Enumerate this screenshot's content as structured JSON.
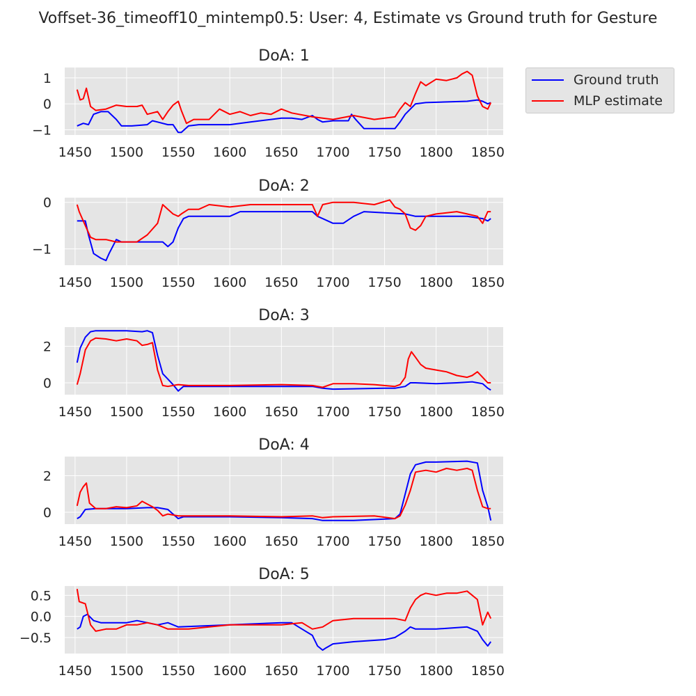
{
  "figure_title": "Voffset-36_timeoff10_mintemp0.5: User: 4, Estimate vs Ground truth for Gesture",
  "legend": {
    "placement": "upper-right-outside",
    "items": [
      {
        "label": "Ground truth",
        "color": "#0000ff"
      },
      {
        "label": "MLP estimate",
        "color": "#ff0000"
      }
    ]
  },
  "colors": {
    "panel_bg": "#e5e5e5",
    "grid": "#ffffff",
    "text": "#262626"
  },
  "chart_data": [
    {
      "type": "line",
      "title": "DoA: 1",
      "xlabel": "",
      "ylabel": "",
      "xlim": [
        1440,
        1865
      ],
      "ylim": [
        -1.2,
        1.4
      ],
      "xticks": [
        1450,
        1500,
        1550,
        1600,
        1650,
        1700,
        1750,
        1800,
        1850
      ],
      "yticks": [
        -1,
        0,
        1
      ],
      "ytick_labels": [
        "−1",
        "0",
        "1"
      ],
      "grid": true,
      "series": [
        {
          "name": "Ground truth",
          "color": "#0000ff",
          "x": [
            1452,
            1458,
            1463,
            1468,
            1475,
            1482,
            1490,
            1495,
            1505,
            1520,
            1525,
            1530,
            1540,
            1545,
            1550,
            1553,
            1560,
            1570,
            1600,
            1620,
            1640,
            1650,
            1660,
            1670,
            1680,
            1685,
            1690,
            1700,
            1715,
            1718,
            1722,
            1730,
            1760,
            1765,
            1770,
            1775,
            1780,
            1790,
            1830,
            1840,
            1845,
            1850,
            1853
          ],
          "y": [
            -0.85,
            -0.75,
            -0.8,
            -0.4,
            -0.3,
            -0.3,
            -0.6,
            -0.85,
            -0.85,
            -0.8,
            -0.65,
            -0.7,
            -0.8,
            -0.8,
            -1.1,
            -1.1,
            -0.85,
            -0.8,
            -0.8,
            -0.7,
            -0.6,
            -0.55,
            -0.55,
            -0.6,
            -0.45,
            -0.6,
            -0.7,
            -0.65,
            -0.65,
            -0.4,
            -0.6,
            -0.95,
            -0.95,
            -0.7,
            -0.4,
            -0.2,
            0,
            0.05,
            0.1,
            0.15,
            0.1,
            0,
            0.05
          ]
        },
        {
          "name": "MLP estimate",
          "color": "#ff0000",
          "x": [
            1452,
            1455,
            1458,
            1461,
            1465,
            1470,
            1480,
            1490,
            1500,
            1510,
            1515,
            1520,
            1530,
            1535,
            1540,
            1545,
            1550,
            1553,
            1558,
            1565,
            1580,
            1590,
            1600,
            1610,
            1620,
            1630,
            1640,
            1650,
            1660,
            1680,
            1700,
            1720,
            1740,
            1750,
            1760,
            1765,
            1770,
            1775,
            1780,
            1785,
            1790,
            1800,
            1810,
            1820,
            1825,
            1830,
            1835,
            1840,
            1845,
            1850,
            1853
          ],
          "y": [
            0.55,
            0.15,
            0.2,
            0.6,
            -0.1,
            -0.25,
            -0.2,
            -0.05,
            -0.1,
            -0.1,
            -0.05,
            -0.4,
            -0.3,
            -0.6,
            -0.3,
            -0.05,
            0.1,
            -0.25,
            -0.75,
            -0.6,
            -0.6,
            -0.2,
            -0.4,
            -0.3,
            -0.45,
            -0.35,
            -0.4,
            -0.2,
            -0.35,
            -0.5,
            -0.6,
            -0.45,
            -0.6,
            -0.55,
            -0.5,
            -0.2,
            0.05,
            -0.1,
            0.4,
            0.85,
            0.7,
            0.95,
            0.9,
            1.0,
            1.15,
            1.25,
            1.1,
            0.3,
            -0.1,
            -0.2,
            0.05
          ]
        }
      ]
    },
    {
      "type": "line",
      "title": "DoA: 2",
      "xlabel": "",
      "ylabel": "",
      "xlim": [
        1440,
        1865
      ],
      "ylim": [
        -1.35,
        0.1
      ],
      "xticks": [
        1450,
        1500,
        1550,
        1600,
        1650,
        1700,
        1750,
        1800,
        1850
      ],
      "yticks": [
        -1,
        0
      ],
      "ytick_labels": [
        "−1",
        "0"
      ],
      "grid": true,
      "series": [
        {
          "name": "Ground truth",
          "color": "#0000ff",
          "x": [
            1452,
            1460,
            1463,
            1468,
            1475,
            1480,
            1483,
            1490,
            1495,
            1505,
            1535,
            1540,
            1545,
            1550,
            1555,
            1560,
            1600,
            1610,
            1680,
            1685,
            1690,
            1700,
            1710,
            1720,
            1730,
            1770,
            1780,
            1830,
            1845,
            1850,
            1853
          ],
          "y": [
            -0.4,
            -0.4,
            -0.7,
            -1.1,
            -1.2,
            -1.25,
            -1.1,
            -0.8,
            -0.85,
            -0.85,
            -0.85,
            -0.95,
            -0.85,
            -0.55,
            -0.35,
            -0.3,
            -0.3,
            -0.2,
            -0.2,
            -0.3,
            -0.35,
            -0.45,
            -0.45,
            -0.3,
            -0.2,
            -0.25,
            -0.3,
            -0.3,
            -0.35,
            -0.4,
            -0.35
          ]
        },
        {
          "name": "MLP estimate",
          "color": "#ff0000",
          "x": [
            1452,
            1454,
            1457,
            1460,
            1465,
            1470,
            1480,
            1490,
            1500,
            1510,
            1520,
            1530,
            1535,
            1540,
            1545,
            1550,
            1553,
            1560,
            1570,
            1580,
            1600,
            1620,
            1660,
            1680,
            1685,
            1690,
            1700,
            1720,
            1740,
            1755,
            1760,
            1765,
            1770,
            1775,
            1780,
            1785,
            1790,
            1800,
            1820,
            1830,
            1840,
            1845,
            1850,
            1853
          ],
          "y": [
            -0.05,
            -0.2,
            -0.35,
            -0.5,
            -0.75,
            -0.8,
            -0.8,
            -0.85,
            -0.85,
            -0.85,
            -0.7,
            -0.45,
            -0.05,
            -0.15,
            -0.25,
            -0.3,
            -0.25,
            -0.15,
            -0.15,
            -0.05,
            -0.1,
            -0.05,
            -0.05,
            -0.05,
            -0.3,
            -0.05,
            0,
            0,
            -0.05,
            0.05,
            -0.1,
            -0.15,
            -0.25,
            -0.55,
            -0.6,
            -0.5,
            -0.3,
            -0.25,
            -0.2,
            -0.25,
            -0.3,
            -0.45,
            -0.2,
            -0.2
          ]
        }
      ]
    },
    {
      "type": "line",
      "title": "DoA: 3",
      "xlabel": "",
      "ylabel": "",
      "xlim": [
        1440,
        1865
      ],
      "ylim": [
        -0.65,
        3.05
      ],
      "xticks": [
        1450,
        1500,
        1550,
        1600,
        1650,
        1700,
        1750,
        1800,
        1850
      ],
      "yticks": [
        0,
        2
      ],
      "ytick_labels": [
        "0",
        "2"
      ],
      "grid": true,
      "series": [
        {
          "name": "Ground truth",
          "color": "#0000ff",
          "x": [
            1452,
            1455,
            1460,
            1465,
            1470,
            1480,
            1500,
            1515,
            1520,
            1525,
            1530,
            1535,
            1540,
            1545,
            1550,
            1555,
            1560,
            1600,
            1650,
            1680,
            1690,
            1700,
            1750,
            1760,
            1770,
            1775,
            1780,
            1800,
            1820,
            1835,
            1845,
            1850,
            1853
          ],
          "y": [
            1.1,
            1.9,
            2.5,
            2.8,
            2.85,
            2.85,
            2.85,
            2.8,
            2.85,
            2.75,
            1.5,
            0.5,
            0.2,
            -0.1,
            -0.45,
            -0.2,
            -0.2,
            -0.2,
            -0.2,
            -0.2,
            -0.3,
            -0.35,
            -0.3,
            -0.3,
            -0.2,
            0,
            0,
            -0.05,
            0,
            0.05,
            -0.05,
            -0.3,
            -0.4
          ]
        },
        {
          "name": "MLP estimate",
          "color": "#ff0000",
          "x": [
            1452,
            1455,
            1460,
            1465,
            1470,
            1480,
            1490,
            1500,
            1510,
            1515,
            1520,
            1525,
            1530,
            1535,
            1540,
            1550,
            1560,
            1600,
            1650,
            1680,
            1690,
            1700,
            1720,
            1740,
            1760,
            1765,
            1770,
            1773,
            1776,
            1780,
            1785,
            1790,
            1800,
            1810,
            1820,
            1830,
            1835,
            1840,
            1845,
            1850,
            1853
          ],
          "y": [
            -0.1,
            0.5,
            1.8,
            2.3,
            2.45,
            2.4,
            2.3,
            2.4,
            2.3,
            2.05,
            2.1,
            2.2,
            0.7,
            -0.15,
            -0.2,
            -0.1,
            -0.15,
            -0.15,
            -0.1,
            -0.15,
            -0.25,
            -0.05,
            -0.05,
            -0.1,
            -0.2,
            -0.1,
            0.3,
            1.3,
            1.7,
            1.4,
            1.0,
            0.8,
            0.7,
            0.6,
            0.4,
            0.3,
            0.4,
            0.6,
            0.3,
            0,
            0
          ]
        }
      ]
    },
    {
      "type": "line",
      "title": "DoA: 4",
      "xlabel": "",
      "ylabel": "",
      "xlim": [
        1440,
        1865
      ],
      "ylim": [
        -0.65,
        3.05
      ],
      "xticks": [
        1450,
        1500,
        1550,
        1600,
        1650,
        1700,
        1750,
        1800,
        1850
      ],
      "yticks": [
        0,
        2
      ],
      "ytick_labels": [
        "0",
        "2"
      ],
      "grid": true,
      "series": [
        {
          "name": "Ground truth",
          "color": "#0000ff",
          "x": [
            1452,
            1455,
            1460,
            1470,
            1500,
            1520,
            1525,
            1530,
            1540,
            1545,
            1550,
            1555,
            1600,
            1650,
            1680,
            1690,
            1700,
            1720,
            1760,
            1765,
            1770,
            1775,
            1780,
            1790,
            1800,
            1830,
            1840,
            1845,
            1850,
            1853
          ],
          "y": [
            -0.35,
            -0.25,
            0.15,
            0.2,
            0.2,
            0.25,
            0.25,
            0.25,
            0.15,
            -0.1,
            -0.35,
            -0.25,
            -0.25,
            -0.3,
            -0.35,
            -0.45,
            -0.45,
            -0.45,
            -0.35,
            -0.1,
            1.0,
            2.1,
            2.6,
            2.75,
            2.75,
            2.8,
            2.7,
            1.2,
            0.3,
            -0.45
          ]
        },
        {
          "name": "MLP estimate",
          "color": "#ff0000",
          "x": [
            1452,
            1455,
            1458,
            1461,
            1464,
            1470,
            1480,
            1490,
            1500,
            1510,
            1515,
            1520,
            1525,
            1530,
            1535,
            1540,
            1550,
            1600,
            1650,
            1680,
            1690,
            1700,
            1740,
            1760,
            1765,
            1770,
            1775,
            1780,
            1790,
            1800,
            1810,
            1820,
            1830,
            1835,
            1840,
            1845,
            1850,
            1853
          ],
          "y": [
            0.35,
            1.1,
            1.4,
            1.6,
            0.5,
            0.2,
            0.2,
            0.3,
            0.25,
            0.35,
            0.6,
            0.45,
            0.3,
            0.1,
            -0.2,
            -0.1,
            -0.2,
            -0.2,
            -0.25,
            -0.2,
            -0.3,
            -0.25,
            -0.2,
            -0.35,
            -0.2,
            0.4,
            1.2,
            2.2,
            2.3,
            2.2,
            2.4,
            2.3,
            2.4,
            2.3,
            1.2,
            0.3,
            0.2,
            0.2
          ]
        }
      ]
    },
    {
      "type": "line",
      "title": "DoA: 5",
      "xlabel": "",
      "ylabel": "",
      "xlim": [
        1440,
        1865
      ],
      "ylim": [
        -0.88,
        0.72
      ],
      "xticks": [
        1450,
        1500,
        1550,
        1600,
        1650,
        1700,
        1750,
        1800,
        1850
      ],
      "yticks": [
        -0.5,
        0,
        0.5
      ],
      "ytick_labels": [
        "−0.5",
        "0.0",
        "0.5"
      ],
      "grid": true,
      "series": [
        {
          "name": "Ground truth",
          "color": "#0000ff",
          "x": [
            1452,
            1455,
            1458,
            1462,
            1468,
            1475,
            1500,
            1510,
            1520,
            1530,
            1540,
            1550,
            1600,
            1650,
            1660,
            1670,
            1680,
            1685,
            1690,
            1693,
            1700,
            1720,
            1750,
            1760,
            1770,
            1775,
            1780,
            1800,
            1830,
            1840,
            1845,
            1850,
            1853
          ],
          "y": [
            -0.3,
            -0.25,
            0,
            0.05,
            -0.1,
            -0.15,
            -0.15,
            -0.1,
            -0.15,
            -0.2,
            -0.15,
            -0.25,
            -0.2,
            -0.15,
            -0.15,
            -0.3,
            -0.45,
            -0.7,
            -0.8,
            -0.75,
            -0.65,
            -0.6,
            -0.55,
            -0.5,
            -0.35,
            -0.25,
            -0.3,
            -0.3,
            -0.25,
            -0.35,
            -0.55,
            -0.7,
            -0.6
          ]
        },
        {
          "name": "MLP estimate",
          "color": "#ff0000",
          "x": [
            1452,
            1454,
            1460,
            1465,
            1470,
            1480,
            1490,
            1500,
            1510,
            1520,
            1530,
            1540,
            1550,
            1560,
            1600,
            1630,
            1650,
            1670,
            1680,
            1690,
            1700,
            1720,
            1740,
            1760,
            1770,
            1775,
            1780,
            1785,
            1790,
            1800,
            1810,
            1820,
            1830,
            1835,
            1840,
            1845,
            1850,
            1853
          ],
          "y": [
            0.65,
            0.35,
            0.3,
            -0.2,
            -0.35,
            -0.3,
            -0.3,
            -0.2,
            -0.2,
            -0.15,
            -0.2,
            -0.3,
            -0.3,
            -0.3,
            -0.2,
            -0.2,
            -0.2,
            -0.15,
            -0.3,
            -0.25,
            -0.1,
            -0.05,
            -0.05,
            -0.05,
            -0.1,
            0.2,
            0.4,
            0.5,
            0.55,
            0.5,
            0.55,
            0.55,
            0.6,
            0.5,
            0.4,
            -0.2,
            0.1,
            -0.05
          ]
        }
      ]
    }
  ]
}
